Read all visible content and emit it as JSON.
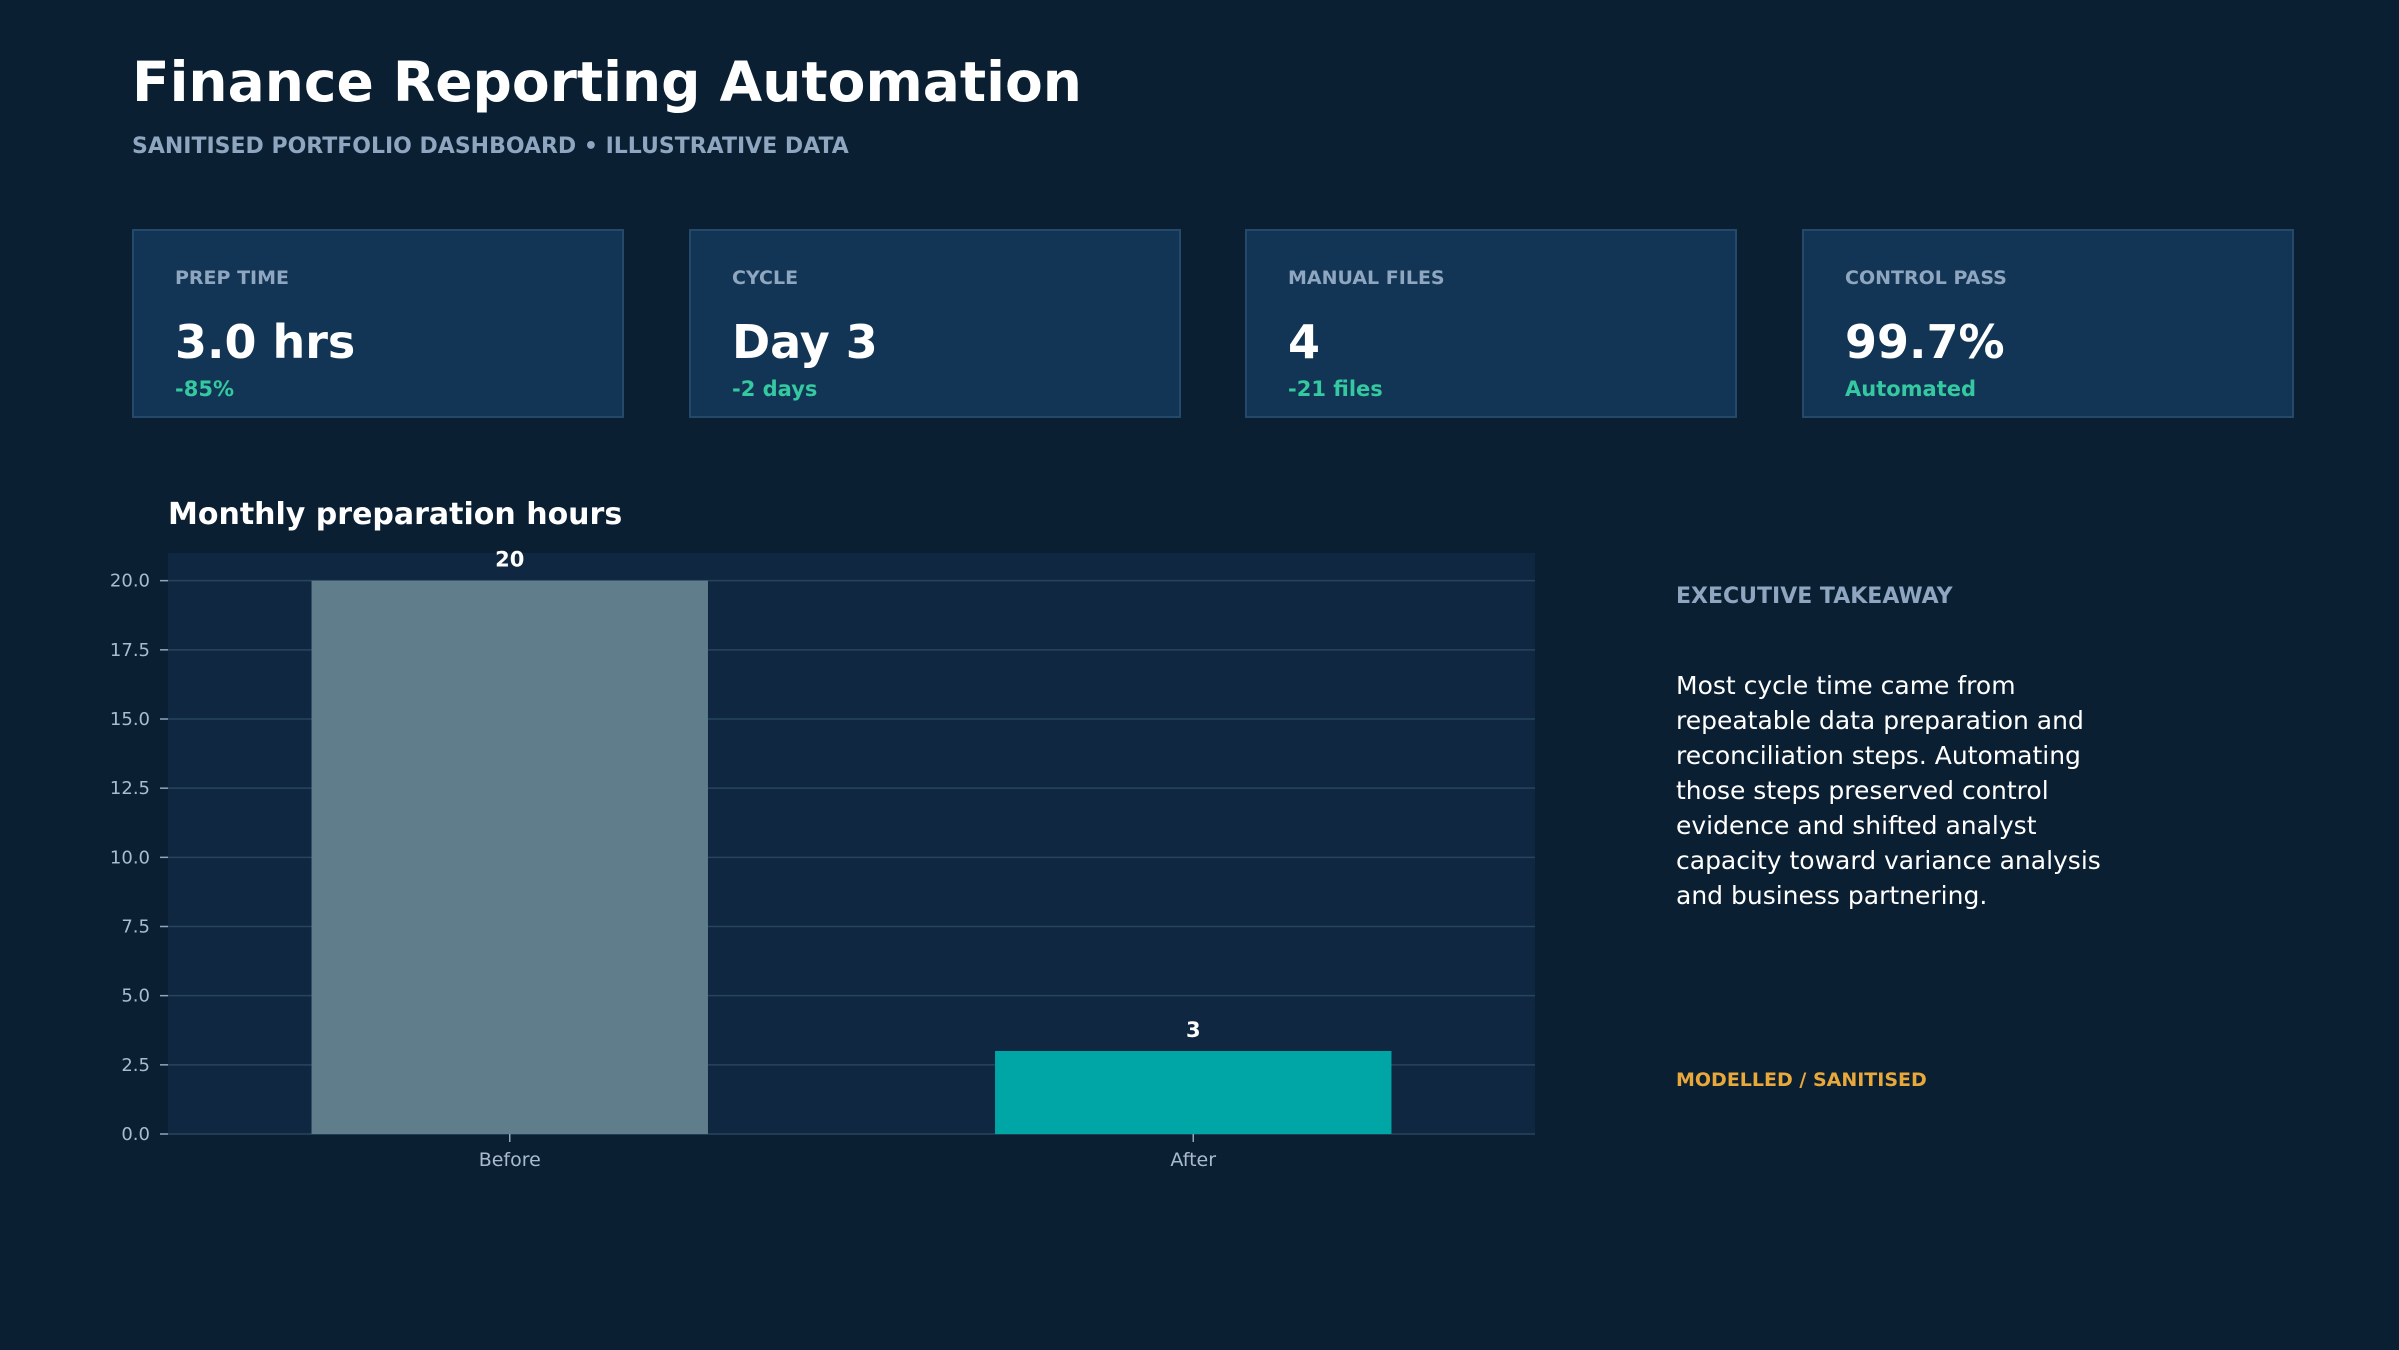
{
  "header": {
    "title": "Finance Reporting Automation",
    "subtitle": "SANITISED PORTFOLIO DASHBOARD  •  ILLUSTRATIVE DATA"
  },
  "kpis": [
    {
      "label": "PREP TIME",
      "value": "3.0 hrs",
      "delta": "-85%"
    },
    {
      "label": "CYCLE",
      "value": "Day 3",
      "delta": "-2 days"
    },
    {
      "label": "MANUAL FILES",
      "value": "4",
      "delta": "-21 files"
    },
    {
      "label": "CONTROL PASS",
      "value": "99.7%",
      "delta": "Automated"
    }
  ],
  "chart_data": {
    "type": "bar",
    "title": "Monthly preparation hours",
    "categories": [
      "Before",
      "After"
    ],
    "values": [
      20,
      3
    ],
    "data_labels": [
      "20",
      "3"
    ],
    "bar_colors": [
      "#607d8b",
      "#00a6a6"
    ],
    "ylim": [
      0,
      21
    ],
    "yticks": [
      "0.0",
      "2.5",
      "5.0",
      "7.5",
      "10.0",
      "12.5",
      "15.0",
      "17.5",
      "20.0"
    ],
    "ytick_values": [
      0,
      2.5,
      5,
      7.5,
      10,
      12.5,
      15,
      17.5,
      20
    ],
    "grid": true,
    "xlabel": "",
    "ylabel": ""
  },
  "takeaway": {
    "heading": "EXECUTIVE TAKEAWAY",
    "body": "Most cycle time came from repeatable data preparation and reconciliation steps. Automating those steps preserved control evidence and shifted analyst capacity toward variance analysis and business partnering.",
    "note": "MODELLED / SANITISED"
  },
  "colors": {
    "background": "#0b1f33",
    "card": "#133555",
    "accent_positive": "#34c9a0",
    "accent_note": "#e8a93a",
    "muted_text": "#8ea6bf"
  }
}
